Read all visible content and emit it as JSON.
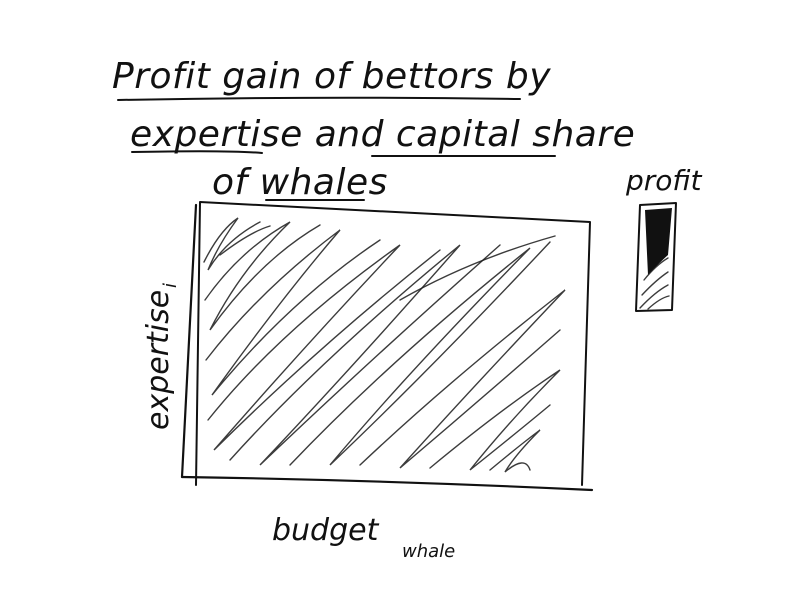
{
  "title": {
    "line1": "Profit gain of bettors by",
    "line2": "expertise and capital share",
    "line3": "of whales"
  },
  "axes": {
    "x_label": "budget",
    "x_subscript": "whale",
    "y_label": "expertise",
    "y_subscript": "i"
  },
  "legend": {
    "label": "profit"
  }
}
